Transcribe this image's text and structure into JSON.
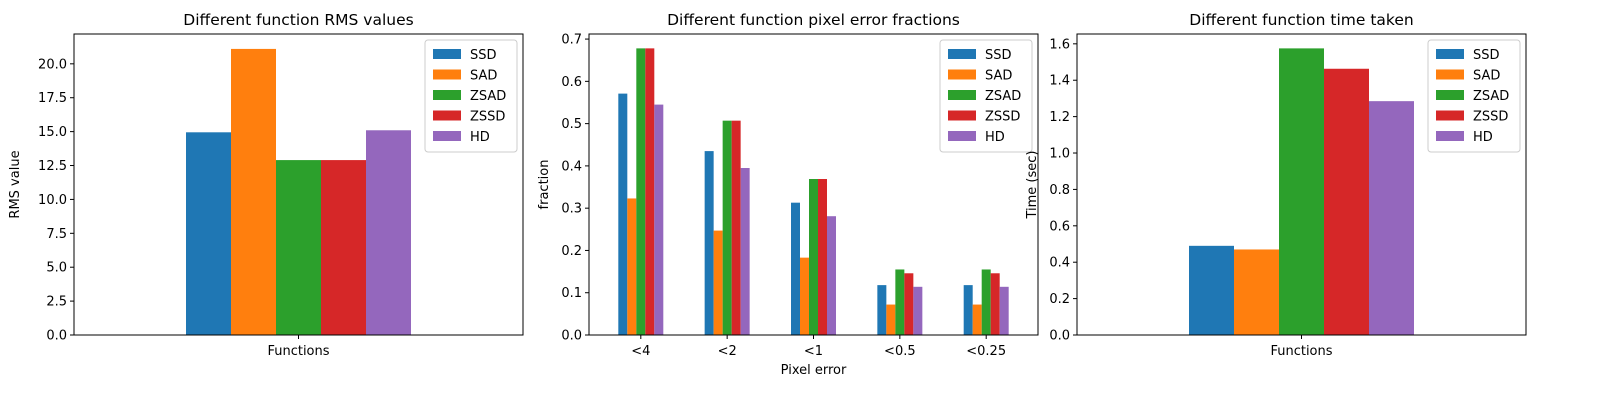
{
  "colors": {
    "SSD": "#1f77b4",
    "SAD": "#ff7f0e",
    "ZSAD": "#2ca02c",
    "ZSSD": "#d62728",
    "HD": "#9467bd"
  },
  "chart_data": [
    {
      "type": "bar",
      "title": "Different function RMS values",
      "xlabel": "",
      "ylabel": "RMS value",
      "categories": [
        "Functions"
      ],
      "series": [
        {
          "name": "SSD",
          "values": [
            14.95
          ]
        },
        {
          "name": "SAD",
          "values": [
            21.1
          ]
        },
        {
          "name": "ZSAD",
          "values": [
            12.9
          ]
        },
        {
          "name": "ZSSD",
          "values": [
            12.9
          ]
        },
        {
          "name": "HD",
          "values": [
            15.1
          ]
        }
      ],
      "ylim": [
        0,
        22.2
      ],
      "yticks": [
        "0.0",
        "2.5",
        "5.0",
        "7.5",
        "10.0",
        "12.5",
        "15.0",
        "17.5",
        "20.0"
      ],
      "grid": false,
      "legend": "top-right"
    },
    {
      "type": "bar",
      "title": "Different function pixel error fractions",
      "xlabel": "Pixel error",
      "ylabel": "fraction",
      "categories": [
        "<4",
        "<2",
        "<1",
        "<0.5",
        "<0.25"
      ],
      "series": [
        {
          "name": "SSD",
          "values": [
            0.571,
            0.435,
            0.313,
            0.118,
            0.118
          ]
        },
        {
          "name": "SAD",
          "values": [
            0.323,
            0.247,
            0.183,
            0.072,
            0.072
          ]
        },
        {
          "name": "ZSAD",
          "values": [
            0.678,
            0.507,
            0.369,
            0.155,
            0.155
          ]
        },
        {
          "name": "ZSSD",
          "values": [
            0.678,
            0.507,
            0.369,
            0.146,
            0.146
          ]
        },
        {
          "name": "HD",
          "values": [
            0.545,
            0.395,
            0.281,
            0.114,
            0.114
          ]
        }
      ],
      "ylim": [
        0,
        0.712
      ],
      "yticks": [
        "0.0",
        "0.1",
        "0.2",
        "0.3",
        "0.4",
        "0.5",
        "0.6",
        "0.7"
      ],
      "grid": false,
      "legend": "top-right"
    },
    {
      "type": "bar",
      "title": "Different function time taken",
      "xlabel": "",
      "ylabel": "Time (sec)",
      "categories": [
        "Functions"
      ],
      "series": [
        {
          "name": "SSD",
          "values": [
            0.49
          ]
        },
        {
          "name": "SAD",
          "values": [
            0.47
          ]
        },
        {
          "name": "ZSAD",
          "values": [
            1.575
          ]
        },
        {
          "name": "ZSSD",
          "values": [
            1.463
          ]
        },
        {
          "name": "HD",
          "values": [
            1.285
          ]
        }
      ],
      "ylim": [
        0,
        1.654
      ],
      "yticks": [
        "0.0",
        "0.2",
        "0.4",
        "0.6",
        "0.8",
        "1.0",
        "1.2",
        "1.4",
        "1.6"
      ],
      "grid": false,
      "legend": "top-right"
    }
  ]
}
